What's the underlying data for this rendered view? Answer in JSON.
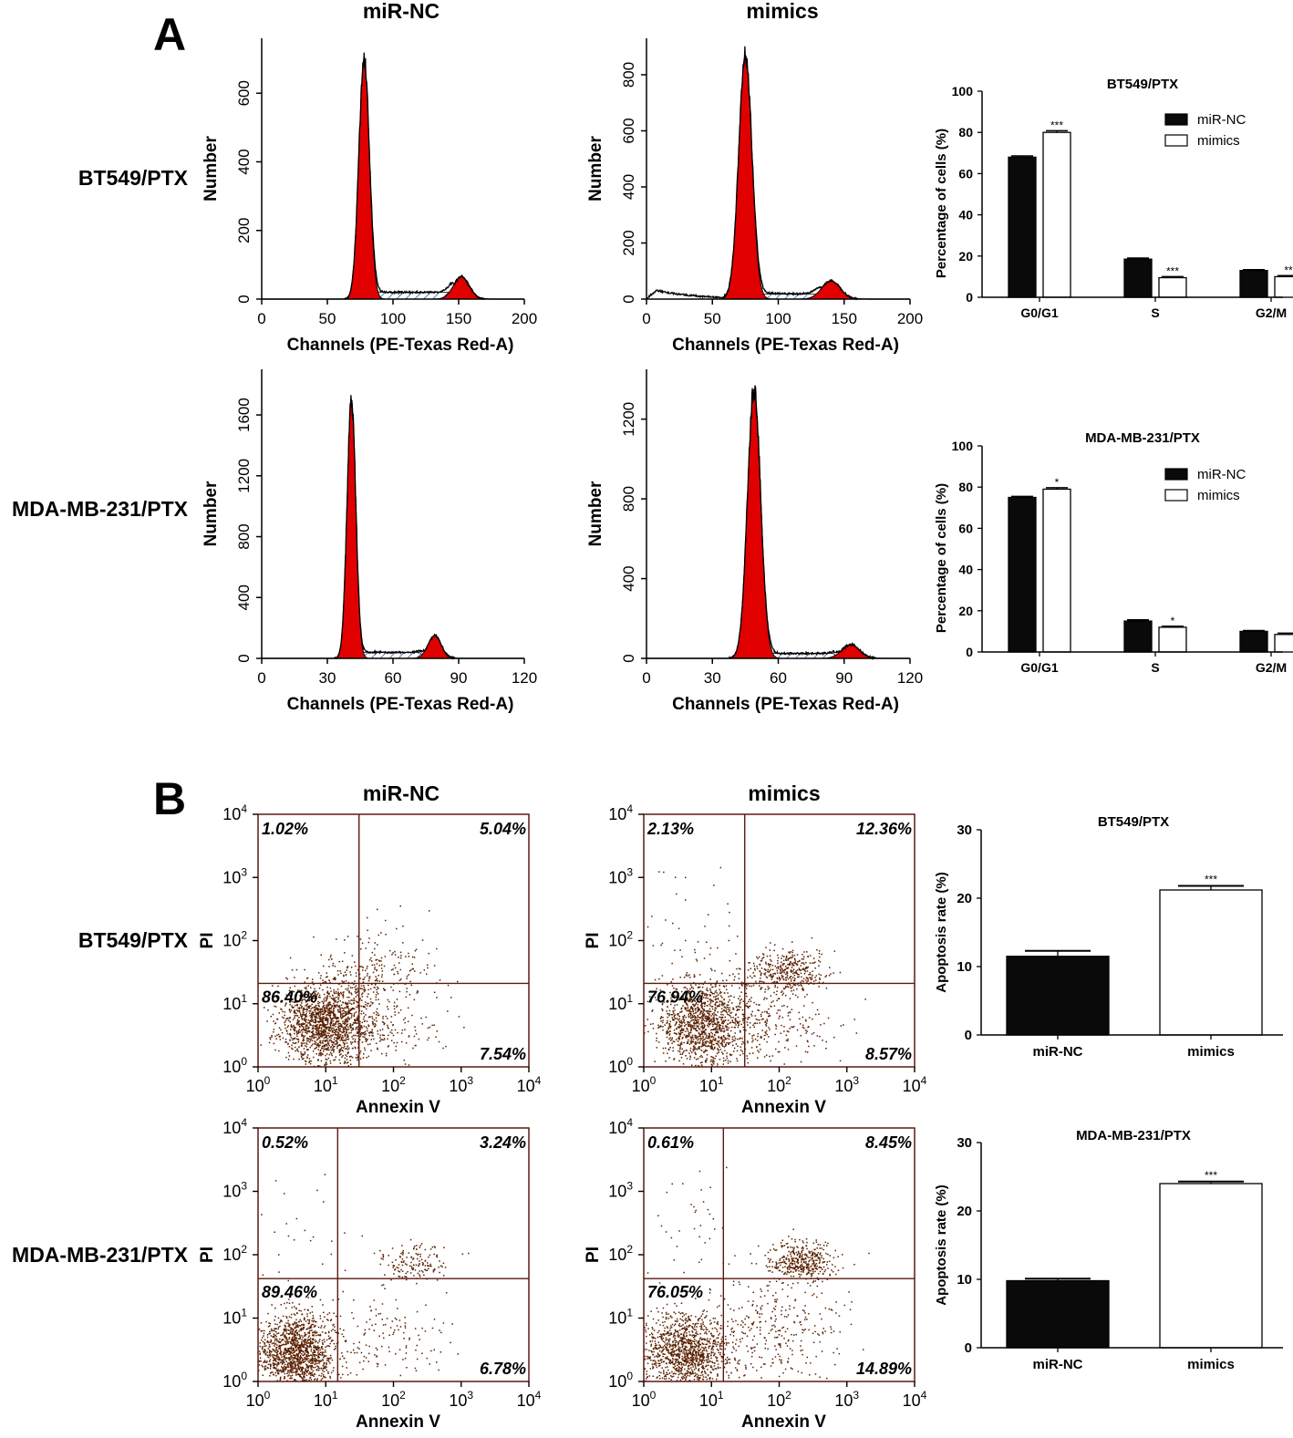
{
  "panel_A": {
    "letter": "A",
    "col_titles": [
      "miR-NC",
      "mimics"
    ],
    "row_labels": [
      "BT549/PTX",
      "MDA-MB-231/PTX"
    ],
    "y_label": "Number",
    "x_label": "Channels (PE-Texas Red-A)"
  },
  "panel_B": {
    "letter": "B",
    "col_titles": [
      "miR-NC",
      "mimics"
    ],
    "row_labels": [
      "BT549/PTX",
      "MDA-MB-231/PTX"
    ],
    "y_label": "PI",
    "x_label": "Annexin V"
  },
  "colors": {
    "peak_fill": "#e00000",
    "dot": "#5a2000",
    "bar_dark": "#0a0a0a",
    "bar_light": "#ffffff",
    "axis": "#000000"
  },
  "chart_data": [
    {
      "id": "hist-bt549-mirnc",
      "type": "area",
      "panel": "A",
      "row": "BT549/PTX",
      "col": "miR-NC",
      "xlim": [
        0,
        200
      ],
      "ylim": [
        0,
        760
      ],
      "xticks": [
        0,
        50,
        100,
        150,
        200
      ],
      "yticks": [
        0,
        200,
        400,
        600
      ],
      "g1": {
        "center": 78,
        "width": 4,
        "height": 700
      },
      "g2": {
        "center": 152,
        "width": 6,
        "height": 65
      },
      "s_level": 20,
      "s_range": [
        82,
        147
      ],
      "debris": 0,
      "xlabel": "Channels (PE-Texas Red-A)",
      "ylabel": "Number"
    },
    {
      "id": "hist-bt549-mimics",
      "type": "area",
      "panel": "A",
      "row": "BT549/PTX",
      "col": "mimics",
      "xlim": [
        0,
        200
      ],
      "ylim": [
        0,
        930
      ],
      "xticks": [
        0,
        50,
        100,
        150,
        200
      ],
      "yticks": [
        0,
        200,
        400,
        600,
        800
      ],
      "g1": {
        "center": 75,
        "width": 5,
        "height": 870
      },
      "g2": {
        "center": 140,
        "width": 7,
        "height": 65
      },
      "s_level": 18,
      "s_range": [
        80,
        133
      ],
      "debris": 40,
      "xlabel": "Channels (PE-Texas Red-A)",
      "ylabel": "Number"
    },
    {
      "id": "hist-mda-mirnc",
      "type": "area",
      "panel": "A",
      "row": "MDA-MB-231/PTX",
      "col": "miR-NC",
      "xlim": [
        0,
        120
      ],
      "ylim": [
        0,
        1900
      ],
      "xticks": [
        0,
        30,
        60,
        90,
        120
      ],
      "yticks": [
        0,
        400,
        800,
        1200,
        1600
      ],
      "g1": {
        "center": 41,
        "width": 2,
        "height": 1700
      },
      "g2": {
        "center": 79,
        "width": 3,
        "height": 150
      },
      "s_level": 40,
      "s_range": [
        44,
        75
      ],
      "debris": 0,
      "xlabel": "Channels (PE-Texas Red-A)",
      "ylabel": "Number"
    },
    {
      "id": "hist-mda-mimics",
      "type": "area",
      "panel": "A",
      "row": "MDA-MB-231/PTX",
      "col": "mimics",
      "xlim": [
        0,
        120
      ],
      "ylim": [
        0,
        1450
      ],
      "xticks": [
        0,
        30,
        60,
        90,
        120
      ],
      "yticks": [
        0,
        400,
        800,
        1200
      ],
      "g1": {
        "center": 49,
        "width": 3,
        "height": 1350
      },
      "g2": {
        "center": 93,
        "width": 4,
        "height": 70
      },
      "s_level": 25,
      "s_range": [
        53,
        88
      ],
      "debris": 0,
      "xlabel": "Channels (PE-Texas Red-A)",
      "ylabel": "Number"
    },
    {
      "id": "bar-cycle-bt549",
      "type": "bar",
      "panel": "A",
      "title": "BT549/PTX",
      "categories": [
        "G0/G1",
        "S",
        "G2/M"
      ],
      "series": [
        {
          "name": "miR-NC",
          "values": [
            68,
            18.5,
            13
          ],
          "errors": [
            0.6,
            0.5,
            0.4
          ]
        },
        {
          "name": "mimics",
          "values": [
            80,
            9.5,
            10
          ],
          "errors": [
            0.8,
            0.5,
            0.5
          ]
        }
      ],
      "significance": [
        "***",
        "***",
        "**"
      ],
      "ylabel": "Percentage of cells (%)",
      "ylim": [
        0,
        100
      ],
      "yticks": [
        0,
        20,
        40,
        60,
        80,
        100
      ]
    },
    {
      "id": "bar-cycle-mda",
      "type": "bar",
      "panel": "A",
      "title": "MDA-MB-231/PTX",
      "categories": [
        "G0/G1",
        "S",
        "G2/M"
      ],
      "series": [
        {
          "name": "miR-NC",
          "values": [
            75,
            15,
            10
          ],
          "errors": [
            0.5,
            0.6,
            0.4
          ]
        },
        {
          "name": "mimics",
          "values": [
            79,
            12,
            8.5
          ],
          "errors": [
            0.7,
            0.5,
            0.6
          ]
        }
      ],
      "significance": [
        "*",
        "*",
        ""
      ],
      "ylabel": "Percentage of cells (%)",
      "ylim": [
        0,
        100
      ],
      "yticks": [
        0,
        20,
        40,
        60,
        80,
        100
      ]
    },
    {
      "id": "scatter-bt549-mirnc",
      "type": "scatter",
      "panel": "B",
      "row": "BT549/PTX",
      "col": "miR-NC",
      "xlim": [
        1,
        10000
      ],
      "ylim": [
        1,
        10000
      ],
      "log": true,
      "gate": [
        31,
        21
      ],
      "quadrants": {
        "ul": "1.02%",
        "ur": "5.04%",
        "ll": "86.40%",
        "lr": "7.54%"
      },
      "clusters": [
        {
          "cx": 10,
          "cy": 5,
          "sx": 0.35,
          "sy": 0.32,
          "n": 1500
        },
        {
          "cx": 45,
          "cy": 30,
          "sx": 0.45,
          "sy": 0.35,
          "n": 250
        },
        {
          "cx": 40,
          "cy": 4,
          "sx": 0.5,
          "sy": 0.3,
          "n": 220
        }
      ],
      "xlabel": "Annexin V",
      "ylabel": "PI"
    },
    {
      "id": "scatter-bt549-mimics",
      "type": "scatter",
      "panel": "B",
      "row": "BT549/PTX",
      "col": "mimics",
      "xlim": [
        1,
        10000
      ],
      "ylim": [
        1,
        10000
      ],
      "log": true,
      "gate": [
        31,
        21
      ],
      "quadrants": {
        "ul": "2.13%",
        "ur": "12.36%",
        "ll": "76.94%",
        "lr": "8.57%"
      },
      "clusters": [
        {
          "cx": 8,
          "cy": 5,
          "sx": 0.35,
          "sy": 0.35,
          "n": 1250
        },
        {
          "cx": 120,
          "cy": 35,
          "sx": 0.3,
          "sy": 0.18,
          "n": 400
        },
        {
          "cx": 60,
          "cy": 5,
          "sx": 0.5,
          "sy": 0.35,
          "n": 250
        },
        {
          "cx": 4,
          "cy": 150,
          "sx": 0.4,
          "sy": 0.6,
          "n": 40
        }
      ],
      "xlabel": "Annexin V",
      "ylabel": "PI"
    },
    {
      "id": "scatter-mda-mirnc",
      "type": "scatter",
      "panel": "B",
      "row": "MDA-MB-231/PTX",
      "col": "miR-NC",
      "xlim": [
        1,
        10000
      ],
      "ylim": [
        1,
        10000
      ],
      "log": true,
      "gate": [
        15,
        42
      ],
      "quadrants": {
        "ul": "0.52%",
        "ur": "3.24%",
        "ll": "89.46%",
        "lr": "6.78%"
      },
      "clusters": [
        {
          "cx": 3.5,
          "cy": 3,
          "sx": 0.3,
          "sy": 0.3,
          "n": 1400
        },
        {
          "cx": 200,
          "cy": 80,
          "sx": 0.25,
          "sy": 0.15,
          "n": 150
        },
        {
          "cx": 60,
          "cy": 5,
          "sx": 0.5,
          "sy": 0.4,
          "n": 150
        },
        {
          "cx": 5,
          "cy": 200,
          "sx": 0.35,
          "sy": 0.5,
          "n": 25
        }
      ],
      "xlabel": "Annexin V",
      "ylabel": "PI"
    },
    {
      "id": "scatter-mda-mimics",
      "type": "scatter",
      "panel": "B",
      "row": "MDA-MB-231/PTX",
      "col": "mimics",
      "xlim": [
        1,
        10000
      ],
      "ylim": [
        1,
        10000
      ],
      "log": true,
      "gate": [
        15,
        42
      ],
      "quadrants": {
        "ul": "0.61%",
        "ur": "8.45%",
        "ll": "76.05%",
        "lr": "14.89%"
      },
      "clusters": [
        {
          "cx": 4,
          "cy": 3,
          "sx": 0.32,
          "sy": 0.3,
          "n": 1200
        },
        {
          "cx": 200,
          "cy": 80,
          "sx": 0.25,
          "sy": 0.15,
          "n": 400
        },
        {
          "cx": 80,
          "cy": 6,
          "sx": 0.55,
          "sy": 0.4,
          "n": 320
        },
        {
          "cx": 6,
          "cy": 200,
          "sx": 0.35,
          "sy": 0.5,
          "n": 40
        }
      ],
      "xlabel": "Annexin V",
      "ylabel": "PI"
    },
    {
      "id": "bar-apop-bt549",
      "type": "bar",
      "panel": "B",
      "title": "BT549/PTX",
      "categories": [
        "miR-NC",
        "mimics"
      ],
      "values": [
        11.5,
        21.2
      ],
      "errors": [
        0.8,
        0.6
      ],
      "significance": [
        "",
        "***"
      ],
      "ylabel": "Apoptosis rate (%)",
      "ylim": [
        0,
        30
      ],
      "yticks": [
        0,
        10,
        20,
        30
      ]
    },
    {
      "id": "bar-apop-mda",
      "type": "bar",
      "panel": "B",
      "title": "MDA-MB-231/PTX",
      "categories": [
        "miR-NC",
        "mimics"
      ],
      "values": [
        9.8,
        24
      ],
      "errors": [
        0.3,
        0.3
      ],
      "significance": [
        "",
        "***"
      ],
      "ylabel": "Apoptosis rate (%)",
      "ylim": [
        0,
        30
      ],
      "yticks": [
        0,
        10,
        20,
        30
      ]
    }
  ]
}
